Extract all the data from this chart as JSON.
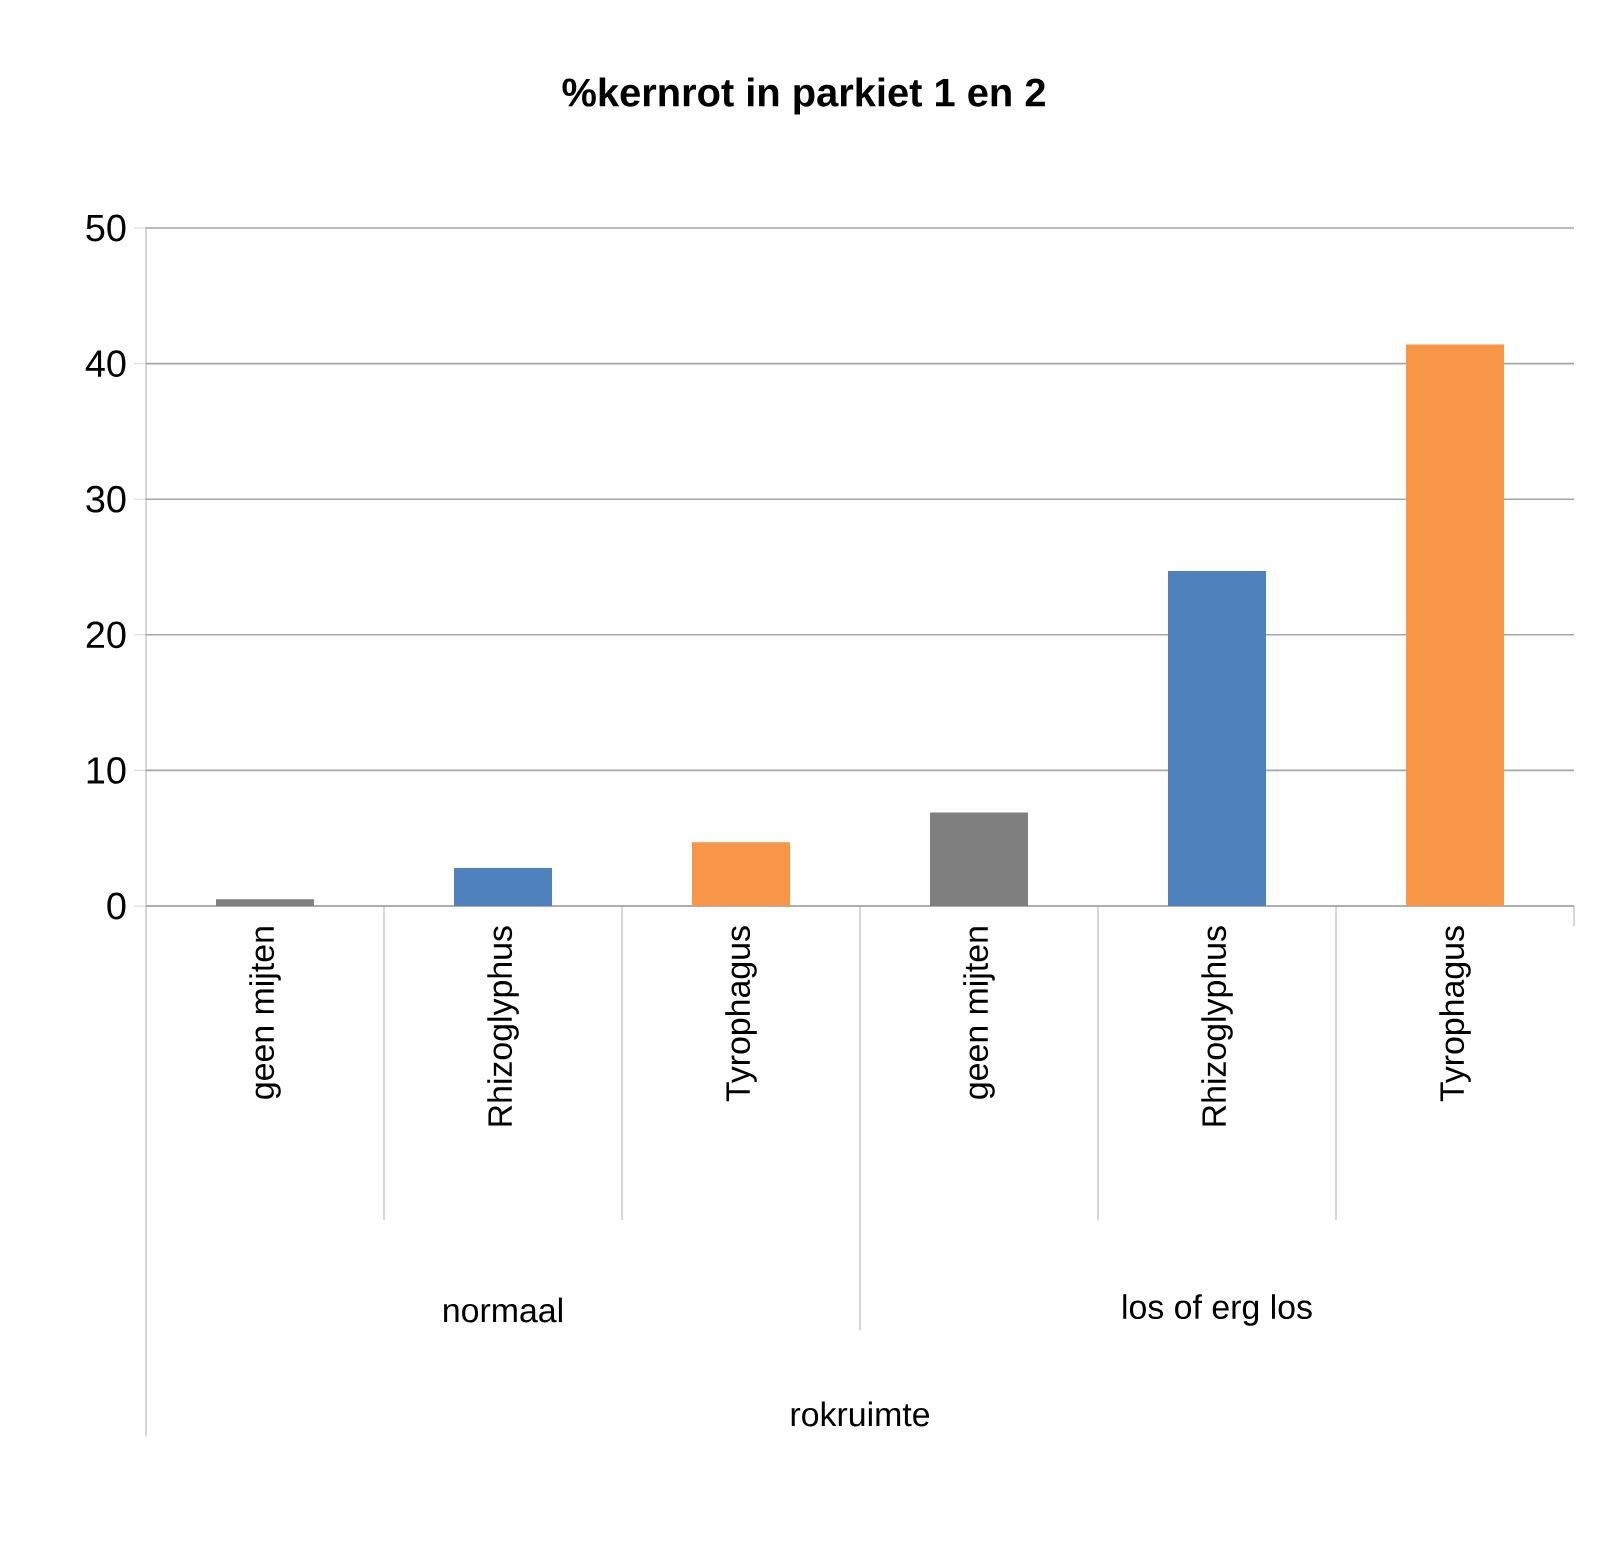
{
  "chart_data": {
    "type": "bar",
    "title": "%kernrot in parkiet 1 en 2",
    "categories": [
      "geen mijten",
      "Rhizoglyphus",
      "Tyrophagus",
      "geen mijten",
      "Rhizoglyphus",
      "Tyrophagus"
    ],
    "values": [
      0.5,
      2.8,
      4.7,
      6.9,
      24.7,
      41.4
    ],
    "colors": [
      "#7f7f7f",
      "#4f81bd",
      "#f79646",
      "#7f7f7f",
      "#4f81bd",
      "#f79646"
    ],
    "annotations": [
      "normaal",
      "los of erg los",
      "rokruimte"
    ],
    "ylim": [
      0,
      50
    ],
    "yticks": [
      0,
      10,
      20,
      30,
      40,
      50
    ],
    "grid": "y"
  }
}
